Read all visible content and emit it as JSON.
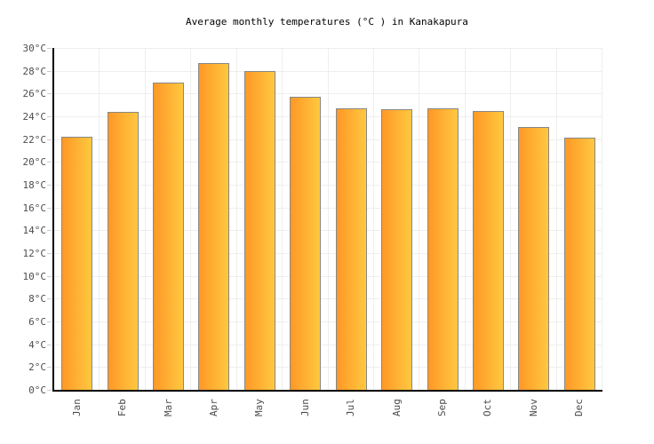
{
  "chart_data": {
    "type": "bar",
    "title": "Average monthly temperatures (°C ) in Kanakapura",
    "categories": [
      "Jan",
      "Feb",
      "Mar",
      "Apr",
      "May",
      "Jun",
      "Jul",
      "Aug",
      "Sep",
      "Oct",
      "Nov",
      "Dec"
    ],
    "values": [
      22.2,
      24.4,
      27.0,
      28.7,
      28.0,
      25.7,
      24.7,
      24.6,
      24.7,
      24.5,
      23.1,
      22.1
    ],
    "xlabel": "",
    "ylabel": "",
    "ylim": [
      0,
      30
    ],
    "ytick_step": 2,
    "ytick_suffix": "°C",
    "grid": "on",
    "legend": "none",
    "colors": {
      "bar_gradient_left": "#FF9826",
      "bar_gradient_right": "#FFC840",
      "bar_border": "#888888",
      "axis": "#000000",
      "gridline": "#EEEEEE",
      "tick": "#CCCCCC",
      "axis_label": "#4D4D4D",
      "title": "#000000",
      "background": "#FFFFFF"
    }
  }
}
